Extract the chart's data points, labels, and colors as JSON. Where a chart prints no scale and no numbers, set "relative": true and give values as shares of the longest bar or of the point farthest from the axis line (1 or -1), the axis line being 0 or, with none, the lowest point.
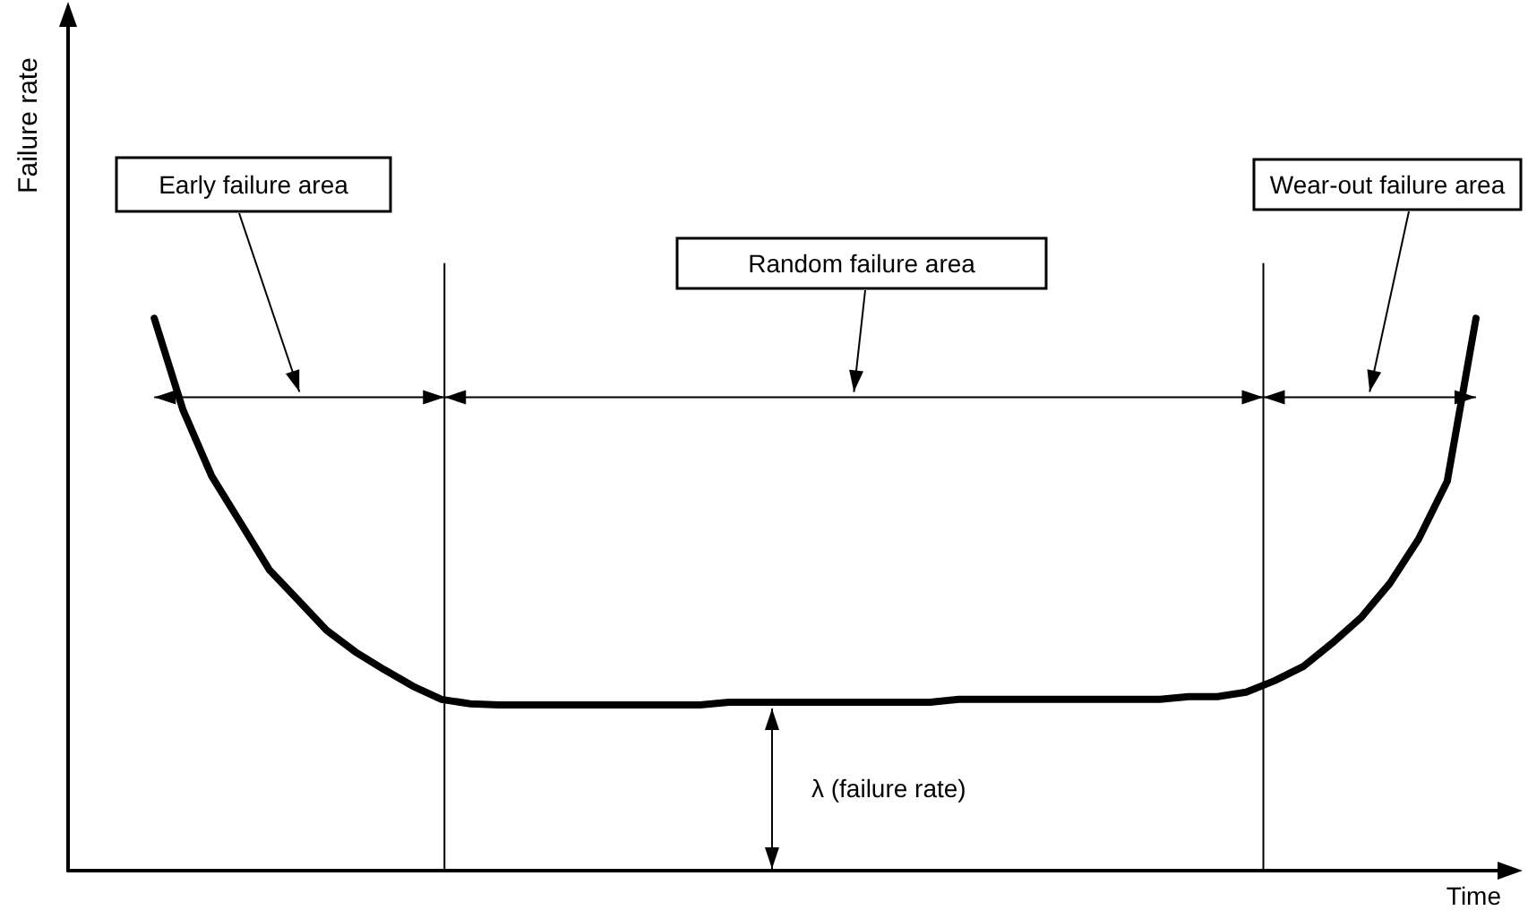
{
  "chart_data": {
    "type": "line",
    "relative": true,
    "xlabel": "Time",
    "ylabel": "Failure rate",
    "color": "#000000",
    "line_style": "solid",
    "marker": "none",
    "grid": false,
    "categories": [
      null,
      null,
      null,
      null,
      null,
      null,
      null,
      null,
      null,
      null,
      null,
      null,
      null,
      null,
      null,
      null,
      null,
      null,
      null,
      null,
      null,
      null,
      null,
      null,
      null,
      null,
      null,
      null,
      null,
      null,
      null,
      null,
      null,
      null,
      null,
      null,
      null,
      null,
      null,
      null,
      null,
      null,
      null,
      null,
      null,
      null,
      null,
      null,
      null,
      null,
      null
    ],
    "values": [
      null,
      null,
      null,
      1.0,
      0.834,
      0.714,
      0.63,
      0.545,
      0.49,
      0.435,
      0.396,
      0.364,
      0.334,
      0.31,
      0.302,
      0.3,
      0.3,
      0.3,
      0.3,
      0.3,
      0.3,
      0.3,
      0.3,
      0.305,
      0.305,
      0.305,
      0.305,
      0.305,
      0.305,
      0.305,
      0.305,
      0.31,
      0.31,
      0.31,
      0.31,
      0.31,
      0.31,
      0.31,
      0.31,
      0.315,
      0.315,
      0.323,
      0.344,
      0.37,
      0.412,
      0.458,
      0.52,
      0.6,
      0.705,
      1.0,
      null
    ],
    "annotations": [
      "Early failure area",
      "Random failure area",
      "Wear-out failure area",
      "λ (failure rate)"
    ]
  }
}
